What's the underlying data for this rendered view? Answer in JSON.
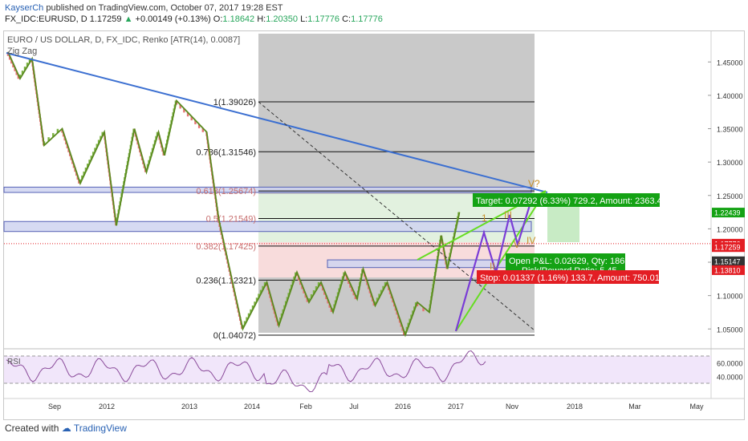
{
  "header": {
    "publisher": "KayserCh",
    "published_text": "published on TradingView.com, October 07, 2017 19:28 EST",
    "symbol": "FX_IDC:EURUSD, D",
    "price": "1.17259",
    "change": "+0.00149 (+0.13%)",
    "o_label": "O:",
    "o_value": "1.18642",
    "h_label": "H:",
    "h_value": "1.20350",
    "l_label": "L:",
    "l_value": "1.17776",
    "c_label": "C:",
    "c_value": "1.17776"
  },
  "overlay": {
    "title": "EURO / US DOLLAR, D, FX_IDC, Renko [ATR(14), 0.0087]",
    "zigzag": "Zig Zag",
    "rsi": "RSI"
  },
  "footer": {
    "created_with": "Created with",
    "brand": "TradingView"
  },
  "colors": {
    "up_brick": "#7cb342",
    "down_brick": "#e57373",
    "zigzag": "#5a8a1f",
    "trendline": "#3b6fd1",
    "wedge": "#66dd22",
    "pattern": "#7a3cd6",
    "target_green": "#14a214",
    "stop_red": "#e31e24",
    "rsi_line": "#8a4b9a"
  },
  "chart_data": {
    "type": "line",
    "series": [
      {
        "x": [
          "2011-06",
          "2011-08",
          "2011-10",
          "2011-12",
          "2012-03",
          "2012-06",
          "2012-10",
          "2012-12",
          "2013-03",
          "2013-05",
          "2013-07",
          "2013-08",
          "2013-10",
          "2014-03",
          "2014-05",
          "2014-09",
          "2015-01",
          "2015-03",
          "2015-06",
          "2015-08",
          "2015-10",
          "2015-12",
          "2016-02",
          "2016-04",
          "2016-05",
          "2016-07",
          "2016-09",
          "2016-12",
          "2017-02",
          "2017-04",
          "2017-06",
          "2017-07",
          "2017-09"
        ],
        "values": [
          1.465,
          1.425,
          1.455,
          1.325,
          1.35,
          1.268,
          1.345,
          1.205,
          1.35,
          1.285,
          1.345,
          1.31,
          1.392,
          1.345,
          1.215,
          1.05,
          1.12,
          1.055,
          1.135,
          1.09,
          1.12,
          1.075,
          1.135,
          1.095,
          1.14,
          1.085,
          1.12,
          1.041,
          1.09,
          1.075,
          1.19,
          1.14,
          1.225
        ]
      }
    ],
    "yaxis": {
      "ticks": [
        "1.45000",
        "1.40000",
        "1.35000",
        "1.30000",
        "1.25000",
        "1.20000",
        "1.15000",
        "1.10000",
        "1.05000"
      ],
      "ylim": [
        1.02,
        1.49
      ]
    },
    "xaxis": {
      "ticks": [
        "Sep",
        "2012",
        "2013",
        "2014",
        "Feb",
        "Jul",
        "2016",
        "2017",
        "Nov",
        "2018",
        "Mar",
        "May"
      ]
    },
    "fib_levels": [
      {
        "label": "1(1.39026)",
        "value": 1.39026
      },
      {
        "label": "0.786(1.31546)",
        "value": 1.31546
      },
      {
        "label": "0.618(1.25674)",
        "value": 1.25674
      },
      {
        "label": "0.5(1.21549)",
        "value": 1.21549
      },
      {
        "label": "0.382(1.17425)",
        "value": 1.17425
      },
      {
        "label": "0.236(1.12321)",
        "value": 1.12321
      },
      {
        "label": "0(1.04072)",
        "value": 1.04072
      }
    ],
    "price_tags": [
      {
        "text": "1.22439",
        "value": 1.22439,
        "color": "#14a214"
      },
      {
        "text": "1.17776",
        "value": 1.17776,
        "color": "#e31e24"
      },
      {
        "text": "1.17259",
        "value": 1.17259,
        "color": "#e31e24"
      },
      {
        "text": "1.15147",
        "value": 1.15147,
        "color": "#333333"
      },
      {
        "text": "1.13810",
        "value": 1.1381,
        "color": "#e31e24"
      }
    ],
    "annotations": {
      "target": "Target: 0.07292 (6.33%) 729.2, Amount: 2363.46",
      "open_pl": "Open P&L: 0.02629, Qty: 18698",
      "rr_ratio": "Risk/Reward Ratio: 5.45",
      "stop": "Stop: 0.01337 (1.16%) 133.7, Amount: 750.01",
      "wave_labels": [
        "1",
        "III",
        "V",
        "II",
        "IV",
        "V?"
      ]
    },
    "rsi": {
      "ticks": [
        "60.0000",
        "40.0000"
      ],
      "levels": [
        70,
        30
      ],
      "ylim": [
        5,
        80
      ]
    }
  }
}
